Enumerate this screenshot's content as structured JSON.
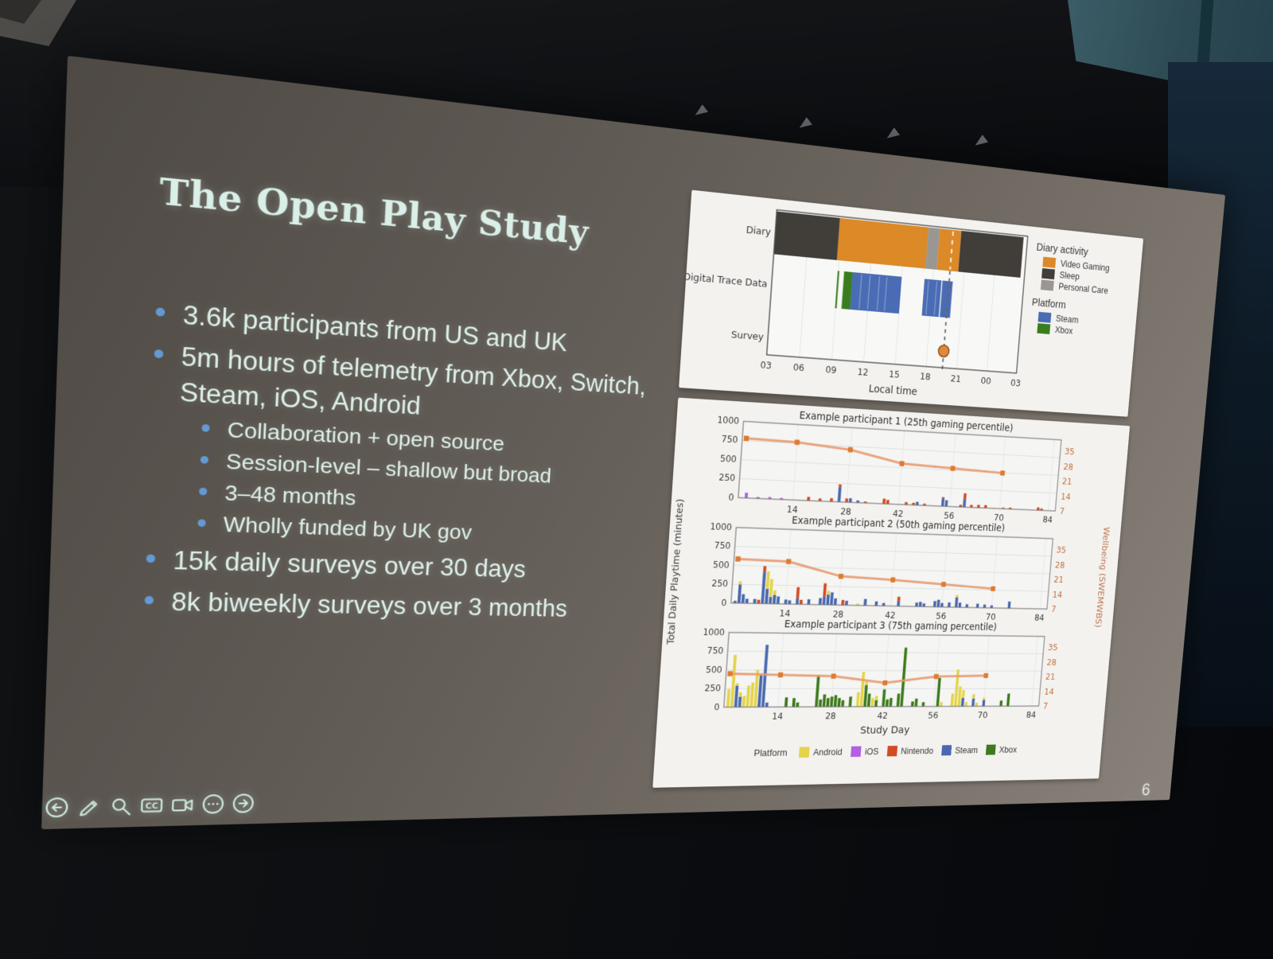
{
  "slide": {
    "title": "The Open Play Study",
    "page_number": "6",
    "bullets": [
      {
        "level": 1,
        "text": "3.6k participants from US and UK"
      },
      {
        "level": 1,
        "text": "5m hours of telemetry from Xbox, Switch, Steam, iOS, Android"
      },
      {
        "level": 2,
        "text": "Collaboration + open source"
      },
      {
        "level": 2,
        "text": "Session-level – shallow but broad"
      },
      {
        "level": 2,
        "text": "3–48 months"
      },
      {
        "level": 2,
        "text": "Wholly funded by UK gov"
      },
      {
        "level": 1,
        "text": "15k daily surveys over 30 days"
      },
      {
        "level": 1,
        "text": "8k biweekly surveys over 3 months"
      }
    ],
    "colors": {
      "title_text": "#d9efe7",
      "body_text": "#def2ea",
      "bullet_dot": "#639ad4"
    }
  },
  "toolbar": {
    "icons": [
      {
        "name": "back"
      },
      {
        "name": "pen"
      },
      {
        "name": "zoom"
      },
      {
        "name": "captions",
        "label": "CC"
      },
      {
        "name": "camera"
      },
      {
        "name": "more"
      },
      {
        "name": "forward"
      }
    ]
  },
  "chart_data": [
    {
      "type": "timeline",
      "rows": [
        "Diary",
        "Digital Trace Data",
        "Survey"
      ],
      "xlabel": "Local time",
      "x_tick_labels": [
        "03",
        "06",
        "09",
        "12",
        "15",
        "18",
        "21",
        "00",
        "03"
      ],
      "x_tick_hours": [
        3,
        6,
        9,
        12,
        15,
        18,
        21,
        24,
        27
      ],
      "x_range_hours": [
        3,
        27
      ],
      "diary_segments": [
        {
          "activity": "Sleep",
          "start": 3,
          "end": 8.8
        },
        {
          "activity": "Video Gaming",
          "start": 8.8,
          "end": 17.2
        },
        {
          "activity": "Personal Care",
          "start": 17.2,
          "end": 18.3
        },
        {
          "activity": "Video Gaming",
          "start": 18.3,
          "end": 20.4
        },
        {
          "activity": "Sleep",
          "start": 20.4,
          "end": 26.6
        }
      ],
      "trace_segments": [
        {
          "platform": "Xbox",
          "start": 8.95,
          "end": 9.1
        },
        {
          "platform": "Xbox",
          "start": 9.55,
          "end": 10.35
        },
        {
          "platform": "Steam",
          "start": 10.35,
          "end": 15.0
        },
        {
          "platform": "Steam",
          "start": 17.2,
          "end": 18.85
        },
        {
          "platform": "Steam",
          "start": 18.95,
          "end": 19.95
        }
      ],
      "steam_streak_hours": [
        11.2,
        12.0,
        12.9,
        13.6,
        17.6,
        18.4
      ],
      "survey_marker_hour": 19.6,
      "colors": {
        "Video Gaming": "#dc8928",
        "Sleep": "#413d38",
        "Personal Care": "#9a9793",
        "Steam": "#4a6cb4",
        "Xbox": "#3a7d1e",
        "marker": "#e1883a",
        "marker_stroke": "#7d5114",
        "dashed_line": "#666666"
      },
      "legend": {
        "diary_title": "Diary activity",
        "diary_items": [
          "Video Gaming",
          "Sleep",
          "Personal Care"
        ],
        "platform_title": "Platform",
        "platform_items": [
          "Steam",
          "Xbox"
        ]
      }
    },
    {
      "type": "bar+line",
      "ylabel_left": "Total Daily Playtime (minutes)",
      "ylabel_right": "Wellbeing (SWEMWBS)",
      "xlabel": "Study Day",
      "y_ticks_left": [
        1000,
        750,
        500,
        250,
        0
      ],
      "y_ticks_right": [
        35,
        28,
        21,
        14,
        7
      ],
      "ylim_left": [
        0,
        1000
      ],
      "x_ticks": [
        14,
        28,
        42,
        56,
        70,
        84
      ],
      "x_range": [
        0,
        86
      ],
      "right_axis_note": "wellbeing 7 aligns with 0 minutes, 35 aligns with 840 minutes",
      "legend_title": "Platform",
      "platform_order": [
        "Android",
        "iOS",
        "Nintendo",
        "Steam",
        "Xbox"
      ],
      "stack_order": [
        "Steam",
        "Xbox",
        "Android",
        "iOS",
        "Nintendo"
      ],
      "platform_colors": {
        "Android": "#e4d44a",
        "iOS": "#b35fe6",
        "Nintendo": "#d44a22",
        "Steam": "#4a68b0",
        "Xbox": "#3c7a1b"
      },
      "line_colors": {
        "line": "#e79b72",
        "marker": "#de7a31"
      },
      "subplots": [
        {
          "title": "Example participant 1 (25th gaming percentile)",
          "wellbeing": [
            [
              1,
              33
            ],
            [
              14,
              32.5
            ],
            [
              28,
              30.5
            ],
            [
              42,
              25.5
            ],
            [
              56,
              24.5
            ],
            [
              70,
              23.5
            ]
          ],
          "bars": [
            {
              "day": 2,
              "iOS": 70
            },
            {
              "day": 5,
              "iOS": 20
            },
            {
              "day": 8,
              "iOS": 25
            },
            {
              "day": 11,
              "iOS": 20
            },
            {
              "day": 18,
              "Nintendo": 50
            },
            {
              "day": 21,
              "Nintendo": 35
            },
            {
              "day": 24,
              "Nintendo": 45
            },
            {
              "day": 26,
              "Steam": 200,
              "Nintendo": 35
            },
            {
              "day": 28,
              "Nintendo": 50
            },
            {
              "day": 29,
              "Steam": 55
            },
            {
              "day": 31,
              "Steam": 30
            },
            {
              "day": 33,
              "Nintendo": 20
            },
            {
              "day": 38,
              "Nintendo": 70
            },
            {
              "day": 39,
              "Nintendo": 55
            },
            {
              "day": 44,
              "Nintendo": 35
            },
            {
              "day": 46,
              "Nintendo": 30
            },
            {
              "day": 47,
              "Steam": 45
            },
            {
              "day": 49,
              "Nintendo": 25
            },
            {
              "day": 54,
              "Steam": 110,
              "Nintendo": 15
            },
            {
              "day": 55,
              "Steam": 85
            },
            {
              "day": 59,
              "Nintendo": 30
            },
            {
              "day": 60,
              "Steam": 110,
              "Nintendo": 80
            },
            {
              "day": 62,
              "Nintendo": 35
            },
            {
              "day": 64,
              "Nintendo": 40
            },
            {
              "day": 66,
              "Nintendo": 40
            },
            {
              "day": 71,
              "Nintendo": 15
            },
            {
              "day": 73,
              "Nintendo": 20
            },
            {
              "day": 81,
              "Nintendo": 40
            },
            {
              "day": 82,
              "Nintendo": 25
            }
          ]
        },
        {
          "title": "Example participant 2 (50th gaming percentile)",
          "wellbeing": [
            [
              1,
              26.5
            ],
            [
              14,
              26
            ],
            [
              28,
              20
            ],
            [
              42,
              19
            ],
            [
              56,
              17.5
            ],
            [
              70,
              16
            ]
          ],
          "bars": [
            {
              "day": 1,
              "Steam": 30
            },
            {
              "day": 2,
              "Steam": 250,
              "Android": 40
            },
            {
              "day": 3,
              "Steam": 120
            },
            {
              "day": 4,
              "Steam": 60
            },
            {
              "day": 6,
              "Steam": 60
            },
            {
              "day": 7,
              "Nintendo": 50
            },
            {
              "day": 8,
              "Steam": 420,
              "Nintendo": 80
            },
            {
              "day": 9,
              "Steam": 200,
              "Android": 230
            },
            {
              "day": 10,
              "Steam": 90,
              "Android": 240
            },
            {
              "day": 11,
              "Steam": 120,
              "Android": 60
            },
            {
              "day": 12,
              "Steam": 100
            },
            {
              "day": 14,
              "Steam": 60
            },
            {
              "day": 15,
              "Steam": 50
            },
            {
              "day": 17,
              "Steam": 80,
              "Nintendo": 150
            },
            {
              "day": 18,
              "Nintendo": 60
            },
            {
              "day": 20,
              "Steam": 70
            },
            {
              "day": 23,
              "Steam": 90
            },
            {
              "day": 24,
              "Steam": 110,
              "Nintendo": 180
            },
            {
              "day": 25,
              "Steam": 140,
              "Android": 50
            },
            {
              "day": 26,
              "Steam": 170
            },
            {
              "day": 27,
              "Steam": 90
            },
            {
              "day": 29,
              "Nintendo": 70
            },
            {
              "day": 30,
              "Steam": 60
            },
            {
              "day": 33,
              "Android": 25
            },
            {
              "day": 35,
              "Steam": 90
            },
            {
              "day": 38,
              "Steam": 60
            },
            {
              "day": 40,
              "Steam": 40
            },
            {
              "day": 44,
              "Steam": 70,
              "Nintendo": 60
            },
            {
              "day": 49,
              "Steam": 55
            },
            {
              "day": 50,
              "Steam": 65
            },
            {
              "day": 51,
              "Steam": 45
            },
            {
              "day": 54,
              "Steam": 80
            },
            {
              "day": 55,
              "Steam": 100
            },
            {
              "day": 56,
              "Steam": 55
            },
            {
              "day": 58,
              "Steam": 65
            },
            {
              "day": 60,
              "Steam": 140,
              "Android": 30
            },
            {
              "day": 61,
              "Steam": 65
            },
            {
              "day": 63,
              "Steam": 45
            },
            {
              "day": 66,
              "Steam": 55
            },
            {
              "day": 68,
              "Steam": 45
            },
            {
              "day": 70,
              "Steam": 35
            },
            {
              "day": 75,
              "Steam": 95
            }
          ]
        },
        {
          "title": "Example participant 3 (75th gaming percentile)",
          "wellbeing": [
            [
              1,
              22
            ],
            [
              14,
              21.5
            ],
            [
              28,
              21
            ],
            [
              42,
              18
            ],
            [
              56,
              21
            ],
            [
              70,
              21.5
            ]
          ],
          "bars": [
            {
              "day": 1,
              "Android": 240
            },
            {
              "day": 2,
              "Android": 700
            },
            {
              "day": 3,
              "Steam": 290,
              "Android": 30
            },
            {
              "day": 4,
              "Steam": 140,
              "Android": 60
            },
            {
              "day": 5,
              "Android": 150
            },
            {
              "day": 6,
              "Android": 290
            },
            {
              "day": 7,
              "Android": 330
            },
            {
              "day": 8,
              "Android": 500
            },
            {
              "day": 9,
              "Steam": 430
            },
            {
              "day": 10,
              "Steam": 840
            },
            {
              "day": 11,
              "Steam": 60
            },
            {
              "day": 16,
              "Xbox": 130
            },
            {
              "day": 18,
              "Xbox": 120
            },
            {
              "day": 19,
              "Xbox": 60
            },
            {
              "day": 24,
              "Xbox": 430
            },
            {
              "day": 25,
              "Xbox": 100
            },
            {
              "day": 26,
              "Xbox": 170
            },
            {
              "day": 27,
              "Xbox": 120
            },
            {
              "day": 28,
              "Xbox": 140
            },
            {
              "day": 29,
              "Xbox": 160
            },
            {
              "day": 30,
              "Xbox": 120
            },
            {
              "day": 31,
              "Xbox": 90
            },
            {
              "day": 33,
              "Xbox": 140
            },
            {
              "day": 35,
              "Android": 200
            },
            {
              "day": 36,
              "Android": 480
            },
            {
              "day": 37,
              "Xbox": 300,
              "Android": 60
            },
            {
              "day": 38,
              "Xbox": 180
            },
            {
              "day": 39,
              "Android": 120
            },
            {
              "day": 40,
              "Xbox": 90,
              "Android": 60
            },
            {
              "day": 42,
              "Xbox": 240
            },
            {
              "day": 43,
              "Xbox": 100
            },
            {
              "day": 44,
              "Xbox": 120
            },
            {
              "day": 46,
              "Xbox": 180
            },
            {
              "day": 47,
              "Xbox": 820
            },
            {
              "day": 50,
              "Xbox": 70
            },
            {
              "day": 51,
              "Xbox": 110
            },
            {
              "day": 53,
              "Xbox": 60
            },
            {
              "day": 57,
              "Xbox": 400
            },
            {
              "day": 58,
              "Android": 60
            },
            {
              "day": 61,
              "Android": 180
            },
            {
              "day": 62,
              "Android": 520
            },
            {
              "day": 63,
              "Android": 280
            },
            {
              "day": 64,
              "Steam": 120,
              "Android": 110
            },
            {
              "day": 65,
              "Android": 60
            },
            {
              "day": 67,
              "Steam": 110,
              "Android": 60
            },
            {
              "day": 68,
              "Android": 50
            },
            {
              "day": 70,
              "Steam": 90,
              "Android": 30
            },
            {
              "day": 75,
              "Xbox": 80
            },
            {
              "day": 77,
              "Xbox": 180
            }
          ]
        }
      ]
    }
  ]
}
